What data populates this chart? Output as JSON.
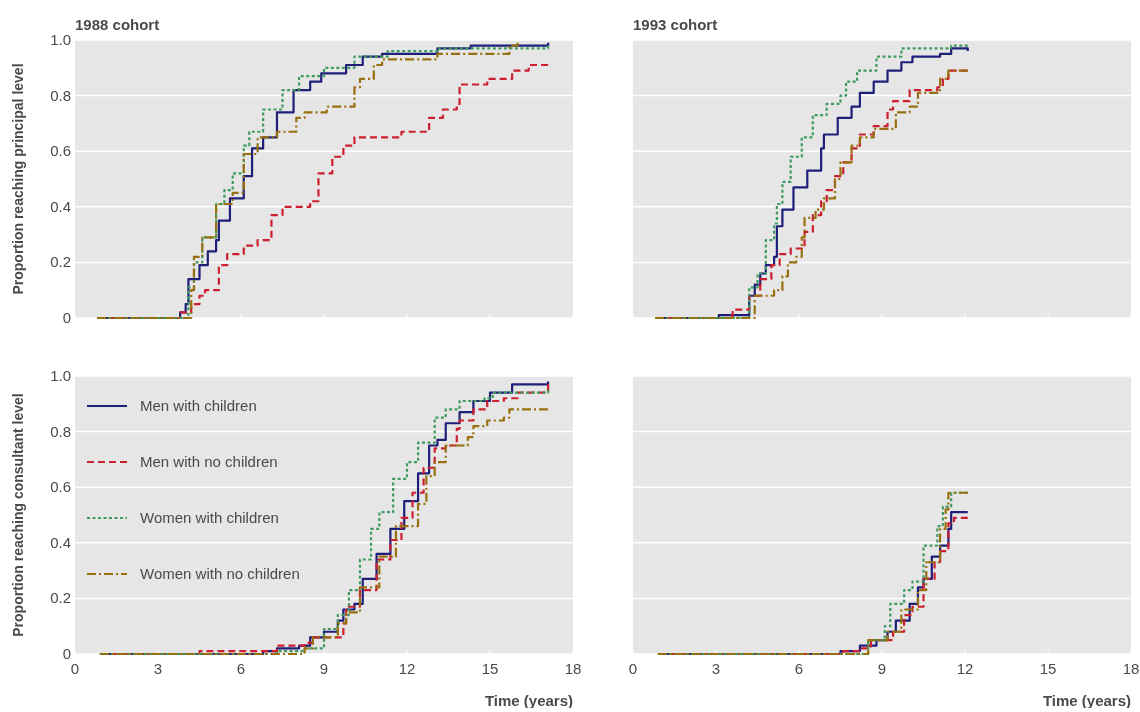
{
  "chart_data": [
    {
      "type": "step",
      "title": "1988 cohort",
      "ylabel": "Proportion reaching principal level",
      "xlim": [
        0,
        18
      ],
      "xticks": [
        0,
        3,
        6,
        9,
        12,
        15,
        18
      ],
      "ylim": [
        0,
        1
      ],
      "yticks": [
        0,
        0.2,
        0.4,
        0.6,
        0.8,
        {
          "value": 1,
          "label": "1.0"
        }
      ],
      "grid": "y",
      "legend": false,
      "tick_labels": "y",
      "marker": "none",
      "series": [
        {
          "color": "#1f1f7a",
          "line_style": "solid",
          "x": [
            0.8,
            3.1,
            3.8,
            4.0,
            4.1,
            4.5,
            4.8,
            5.1,
            5.2,
            5.6,
            6.1,
            6.4,
            6.8,
            7.3,
            7.9,
            8.5,
            8.9,
            9.8,
            10.4,
            11.1,
            13.1,
            14.3,
            17.1
          ],
          "values": [
            0,
            0,
            0.02,
            0.05,
            0.14,
            0.19,
            0.24,
            0.28,
            0.35,
            0.43,
            0.51,
            0.61,
            0.65,
            0.74,
            0.82,
            0.85,
            0.88,
            0.91,
            0.94,
            0.95,
            0.97,
            0.98,
            0.99
          ]
        },
        {
          "color": "#cc1f2f",
          "line_style": "dashed",
          "x": [
            0.8,
            3.7,
            3.8,
            4.2,
            4.5,
            4.7,
            5.2,
            5.5,
            6.1,
            6.6,
            7.1,
            7.5,
            8.5,
            8.8,
            9.3,
            9.7,
            10.1,
            11.8,
            12.8,
            13.3,
            13.8,
            13.9,
            14.9,
            15.8,
            16.4,
            17.1
          ],
          "values": [
            0,
            0,
            0.02,
            0.05,
            0.08,
            0.1,
            0.19,
            0.23,
            0.26,
            0.28,
            0.37,
            0.4,
            0.42,
            0.52,
            0.58,
            0.62,
            0.65,
            0.67,
            0.72,
            0.75,
            0.77,
            0.84,
            0.86,
            0.89,
            0.91,
            0.91
          ]
        },
        {
          "color": "#3f9a5f",
          "line_style": "dotted",
          "x": [
            0.8,
            4.0,
            4.1,
            4.3,
            4.6,
            5.1,
            5.4,
            5.7,
            6.1,
            6.3,
            6.8,
            7.5,
            8.1,
            9.0,
            10.1,
            11.3,
            13.1,
            17.1
          ],
          "values": [
            0,
            0,
            0.11,
            0.2,
            0.29,
            0.41,
            0.46,
            0.52,
            0.62,
            0.67,
            0.75,
            0.82,
            0.87,
            0.9,
            0.94,
            0.96,
            0.97,
            0.98
          ]
        },
        {
          "color": "#98700f",
          "line_style": "dashdot",
          "x": [
            0.8,
            4.0,
            4.2,
            4.3,
            4.6,
            5.1,
            5.7,
            6.1,
            6.6,
            7.3,
            8.0,
            8.3,
            9.1,
            10.1,
            10.3,
            10.8,
            11.1,
            13.1,
            15.7,
            16.0
          ],
          "values": [
            0,
            0,
            0.1,
            0.22,
            0.29,
            0.41,
            0.45,
            0.59,
            0.65,
            0.67,
            0.72,
            0.74,
            0.76,
            0.83,
            0.86,
            0.91,
            0.93,
            0.95,
            0.98,
            0.99
          ]
        }
      ]
    },
    {
      "type": "step",
      "title": "1993 cohort",
      "xlim": [
        0,
        18
      ],
      "xticks": [
        0,
        3,
        6,
        9,
        12,
        15,
        18
      ],
      "ylim": [
        0,
        1
      ],
      "yticks": [
        0,
        0.2,
        0.4,
        0.6,
        0.8,
        1
      ],
      "grid": "y",
      "legend": false,
      "tick_labels": false,
      "marker": "none",
      "series": [
        {
          "color": "#1f1f7a",
          "line_style": "solid",
          "x": [
            0.8,
            3.1,
            3.1,
            4.1,
            4.2,
            4.4,
            4.6,
            4.8,
            5.1,
            5.2,
            5.4,
            5.8,
            6.3,
            6.8,
            6.9,
            7.4,
            7.9,
            8.2,
            8.7,
            9.2,
            9.7,
            10.1,
            11.1,
            11.5,
            12.1
          ],
          "values": [
            0,
            0,
            0.01,
            0.01,
            0.08,
            0.12,
            0.16,
            0.19,
            0.22,
            0.33,
            0.39,
            0.47,
            0.53,
            0.61,
            0.66,
            0.72,
            0.76,
            0.81,
            0.85,
            0.89,
            0.92,
            0.94,
            0.95,
            0.97,
            0.96
          ]
        },
        {
          "color": "#cc1f2f",
          "line_style": "dashed",
          "x": [
            0.8,
            3.6,
            3.6,
            4.1,
            4.2,
            4.6,
            5.0,
            5.3,
            5.7,
            6.2,
            6.5,
            6.8,
            7.0,
            7.3,
            7.6,
            7.9,
            8.2,
            8.7,
            9.2,
            9.4,
            10.0,
            11.0,
            11.2,
            11.4,
            12.1
          ],
          "values": [
            0,
            0,
            0.03,
            0.03,
            0.08,
            0.14,
            0.19,
            0.23,
            0.25,
            0.31,
            0.37,
            0.42,
            0.46,
            0.51,
            0.56,
            0.61,
            0.66,
            0.69,
            0.75,
            0.78,
            0.82,
            0.83,
            0.86,
            0.89,
            0.89
          ]
        },
        {
          "color": "#3f9a5f",
          "line_style": "dotted",
          "x": [
            0.8,
            4.1,
            4.2,
            4.5,
            4.8,
            5.1,
            5.2,
            5.4,
            5.7,
            6.1,
            6.5,
            7.0,
            7.5,
            7.7,
            8.1,
            8.8,
            9.7,
            11.0,
            11.5,
            12.1
          ],
          "values": [
            0,
            0,
            0.11,
            0.16,
            0.28,
            0.34,
            0.41,
            0.49,
            0.58,
            0.65,
            0.73,
            0.77,
            0.8,
            0.85,
            0.89,
            0.94,
            0.97,
            0.97,
            0.98,
            0.98
          ]
        },
        {
          "color": "#98700f",
          "line_style": "dashdot",
          "x": [
            0.8,
            4.2,
            4.4,
            5.1,
            5.4,
            5.6,
            5.9,
            6.1,
            6.2,
            6.6,
            6.9,
            7.3,
            7.5,
            7.9,
            8.2,
            8.7,
            9.4,
            9.5,
            10.0,
            10.3,
            11.0,
            11.1,
            11.4,
            12.1
          ],
          "values": [
            0,
            0,
            0.08,
            0.1,
            0.15,
            0.2,
            0.22,
            0.29,
            0.36,
            0.39,
            0.43,
            0.5,
            0.56,
            0.62,
            0.65,
            0.68,
            0.68,
            0.74,
            0.76,
            0.81,
            0.82,
            0.86,
            0.89,
            0.89
          ]
        }
      ]
    },
    {
      "type": "step",
      "ylabel": "Proportion reaching consultant level",
      "xlabel": "Time (years)",
      "xlim": [
        0,
        18
      ],
      "xticks": [
        0,
        3,
        6,
        9,
        12,
        15,
        18
      ],
      "ylim": [
        0,
        1
      ],
      "yticks": [
        0,
        0.2,
        0.4,
        0.6,
        0.8,
        {
          "value": 1,
          "label": "1.0"
        }
      ],
      "grid": "y",
      "legend": "top left",
      "marker": "none",
      "series": [
        {
          "name": "Men with children",
          "color": "#1f1f7a",
          "line_style": "solid",
          "x": [
            0.9,
            6.6,
            6.8,
            7.3,
            8.1,
            8.5,
            9.0,
            9.5,
            9.7,
            10.1,
            10.4,
            10.9,
            11.4,
            11.9,
            12.4,
            12.8,
            13.1,
            13.4,
            13.9,
            14.4,
            15.0,
            15.8,
            17.1
          ],
          "values": [
            0,
            0,
            0.01,
            0.02,
            0.03,
            0.06,
            0.08,
            0.12,
            0.16,
            0.18,
            0.27,
            0.36,
            0.45,
            0.55,
            0.65,
            0.75,
            0.77,
            0.83,
            0.87,
            0.91,
            0.94,
            0.97,
            0.98
          ]
        },
        {
          "name": "Men with no children",
          "color": "#cc1f2f",
          "line_style": "dashed",
          "x": [
            0.9,
            4.4,
            4.5,
            6.8,
            7.3,
            8.3,
            8.6,
            9.3,
            9.7,
            9.8,
            10.3,
            10.9,
            11.4,
            11.8,
            12.2,
            12.6,
            13.0,
            13.4,
            13.8,
            13.9,
            14.4,
            14.9,
            15.5,
            16.0,
            17.1
          ],
          "values": [
            0,
            0,
            0.01,
            0.01,
            0.03,
            0.04,
            0.06,
            0.06,
            0.11,
            0.17,
            0.23,
            0.34,
            0.41,
            0.49,
            0.58,
            0.67,
            0.74,
            0.75,
            0.81,
            0.84,
            0.88,
            0.91,
            0.92,
            0.94,
            0.97
          ]
        },
        {
          "name": "Women with children",
          "color": "#3f9a5f",
          "line_style": "dotted",
          "x": [
            0.9,
            6.8,
            7.3,
            8.3,
            9.0,
            9.5,
            9.9,
            10.3,
            10.7,
            11.0,
            11.5,
            12.0,
            12.4,
            13.0,
            13.4,
            13.9,
            14.8,
            15.1,
            17.1
          ],
          "values": [
            0,
            0,
            0.01,
            0.02,
            0.09,
            0.14,
            0.23,
            0.34,
            0.45,
            0.51,
            0.63,
            0.69,
            0.76,
            0.85,
            0.88,
            0.91,
            0.92,
            0.94,
            0.95
          ]
        },
        {
          "name": "Women with no children",
          "color": "#98700f",
          "line_style": "dashdot",
          "x": [
            0.9,
            6.8,
            8.3,
            8.6,
            9.5,
            9.8,
            10.3,
            11.0,
            11.6,
            12.4,
            12.7,
            13.0,
            13.4,
            14.2,
            14.4,
            14.9,
            15.5,
            15.7,
            17.1
          ],
          "values": [
            0,
            0,
            0.02,
            0.06,
            0.11,
            0.15,
            0.24,
            0.35,
            0.46,
            0.54,
            0.64,
            0.69,
            0.75,
            0.78,
            0.82,
            0.84,
            0.85,
            0.88,
            0.88
          ]
        }
      ]
    },
    {
      "type": "step",
      "xlabel": "Time (years)",
      "xlim": [
        0,
        18
      ],
      "xticks": [
        0,
        3,
        6,
        9,
        12,
        15,
        18
      ],
      "ylim": [
        0,
        1
      ],
      "yticks": [
        0,
        0.2,
        0.4,
        0.6,
        0.8,
        1
      ],
      "grid": "y",
      "legend": false,
      "tick_labels": "x",
      "marker": "none",
      "series": [
        {
          "color": "#1f1f7a",
          "line_style": "solid",
          "x": [
            0.9,
            7.1,
            7.5,
            8.2,
            8.8,
            9.2,
            9.5,
            10.0,
            10.3,
            10.5,
            10.8,
            11.1,
            11.4,
            11.5,
            12.1
          ],
          "values": [
            0,
            0,
            0.01,
            0.03,
            0.05,
            0.08,
            0.12,
            0.18,
            0.24,
            0.27,
            0.35,
            0.39,
            0.45,
            0.51,
            0.51
          ]
        },
        {
          "color": "#cc1f2f",
          "line_style": "dashed",
          "x": [
            0.9,
            7.3,
            7.6,
            8.2,
            8.6,
            9.1,
            9.4,
            9.8,
            10.1,
            10.5,
            10.9,
            11.1,
            11.4,
            11.6,
            12.1
          ],
          "values": [
            0,
            0,
            0.01,
            0.02,
            0.05,
            0.05,
            0.08,
            0.14,
            0.17,
            0.27,
            0.33,
            0.37,
            0.47,
            0.49,
            0.49
          ]
        },
        {
          "color": "#3f9a5f",
          "line_style": "dotted",
          "x": [
            0.9,
            8.0,
            8.5,
            9.1,
            9.3,
            9.8,
            10.1,
            10.5,
            11.0,
            11.2,
            11.5,
            12.1
          ],
          "values": [
            0,
            0,
            0.05,
            0.1,
            0.18,
            0.23,
            0.26,
            0.39,
            0.46,
            0.53,
            0.58,
            0.58
          ]
        },
        {
          "color": "#98700f",
          "line_style": "dashdot",
          "x": [
            0.9,
            7.9,
            8.5,
            9.2,
            9.7,
            10.3,
            10.6,
            11.1,
            11.3,
            11.4,
            12.1
          ],
          "values": [
            0,
            0,
            0.05,
            0.08,
            0.16,
            0.23,
            0.33,
            0.45,
            0.52,
            0.58,
            0.58
          ]
        }
      ]
    }
  ]
}
